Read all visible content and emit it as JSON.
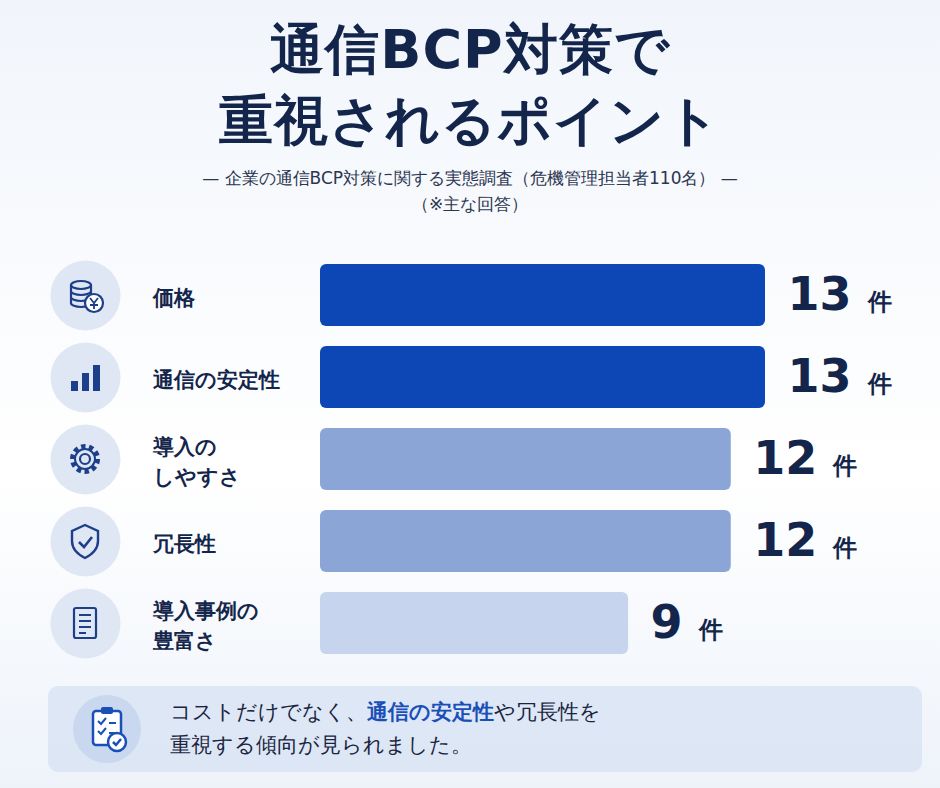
{
  "chart_data": {
    "type": "bar",
    "orientation": "horizontal",
    "title": "通信BCP対策で\n重視されるポイント",
    "subtitle": "— 企業の通信BCP対策に関する実態調査（危機管理担当者110名） —\n（※主な回答）",
    "categories": [
      "価格",
      "通信の安定性",
      "導入の\nしやすさ",
      "冗長性",
      "導入事例の\n豊富さ"
    ],
    "values": [
      13,
      13,
      12,
      12,
      9
    ],
    "value_labels": [
      "13 件",
      "13 件",
      "12 件",
      "12 件",
      "9 件"
    ],
    "colors": [
      "#0d47b5",
      "#0d47b5",
      "#8ba5d6",
      "#8ba5d6",
      "#c6d4ee"
    ],
    "xlim": [
      0,
      13
    ],
    "grid": false,
    "data_labels": true,
    "tick_labels": "y",
    "annotations": [
      "コストだけでなく、",
      "通信の安定性",
      "や冗長性を\n重視する傾向が見られました。"
    ]
  }
}
